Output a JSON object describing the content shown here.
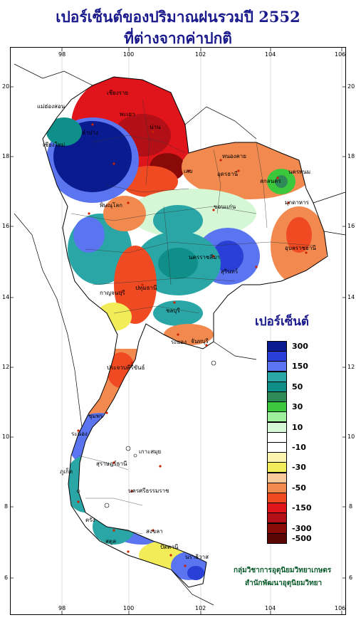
{
  "title": {
    "line1": "เปอร์เซ็นต์ของปริมาณฝนรวมปี 2552",
    "line2": "ที่ต่างจากค่าปกติ"
  },
  "axes": {
    "longitude_ticks": [
      "98",
      "100",
      "102",
      "104",
      "106"
    ],
    "latitude_ticks": [
      "20",
      "18",
      "16",
      "14",
      "12",
      "10",
      "8",
      "6"
    ]
  },
  "legend": {
    "title": "เปอร์เซ็นต์",
    "classes": [
      {
        "color": "#0a1a8f",
        "label": "300"
      },
      {
        "color": "#2a3fd6",
        "label": ""
      },
      {
        "color": "#5b74f0",
        "label": "150"
      },
      {
        "color": "#2aa6a6",
        "label": ""
      },
      {
        "color": "#0f8f8a",
        "label": "50"
      },
      {
        "color": "#2e8b57",
        "label": ""
      },
      {
        "color": "#3cc83c",
        "label": "30"
      },
      {
        "color": "#9ef09e",
        "label": ""
      },
      {
        "color": "#d6f7d6",
        "label": "10"
      },
      {
        "color": "#ffffff",
        "label": ""
      },
      {
        "color": "#ffffff",
        "label": "-10"
      },
      {
        "color": "#fbf3b0",
        "label": ""
      },
      {
        "color": "#f2ec58",
        "label": "-30"
      },
      {
        "color": "#f8c79a",
        "label": ""
      },
      {
        "color": "#f2894e",
        "label": "-50"
      },
      {
        "color": "#f04a23",
        "label": ""
      },
      {
        "color": "#e0141b",
        "label": "-150"
      },
      {
        "color": "#b30f16",
        "label": ""
      },
      {
        "color": "#8a0a0a",
        "label": "-300"
      },
      {
        "color": "#5c0505",
        "label": "-500"
      }
    ]
  },
  "credit": {
    "line1": "กลุ่มวิชาการอุตุนิยมวิทยาเกษตร",
    "line2": "สำนักพัฒนาอุตุนิยมวิทยา"
  },
  "places": [
    {
      "name": "เชียงราย"
    },
    {
      "name": "แม่ฮ่องสอน"
    },
    {
      "name": "พะเยา"
    },
    {
      "name": "น่าน"
    },
    {
      "name": "ลำปาง"
    },
    {
      "name": "เชียงใหม่"
    },
    {
      "name": "หนองคาย"
    },
    {
      "name": "นครพนม"
    },
    {
      "name": "อุดรธานี"
    },
    {
      "name": "สกลนคร"
    },
    {
      "name": "เลย"
    },
    {
      "name": "มุกดาหาร"
    },
    {
      "name": "พิษณุโลก"
    },
    {
      "name": "ขอนแก่น"
    },
    {
      "name": "อุบลราชธานี"
    },
    {
      "name": "นครราชสีมา"
    },
    {
      "name": "สุรินทร์"
    },
    {
      "name": "กาญจนบุรี"
    },
    {
      "name": "ปทุมธานี"
    },
    {
      "name": "ชลบุรี"
    },
    {
      "name": "ระยอง"
    },
    {
      "name": "จันทบุรี"
    },
    {
      "name": "ประจวบคีรีขันธ์"
    },
    {
      "name": "ชุมพร"
    },
    {
      "name": "ระนอง"
    },
    {
      "name": "สุราษฎร์ธานี"
    },
    {
      "name": "นครศรีธรรมราช"
    },
    {
      "name": "ภูเก็ต"
    },
    {
      "name": "สงขลา"
    },
    {
      "name": "ปัตตานี"
    },
    {
      "name": "นราธิวาส"
    },
    {
      "name": "สตูล"
    },
    {
      "name": "ตรัง"
    },
    {
      "name": "เกาะสมุย"
    }
  ]
}
